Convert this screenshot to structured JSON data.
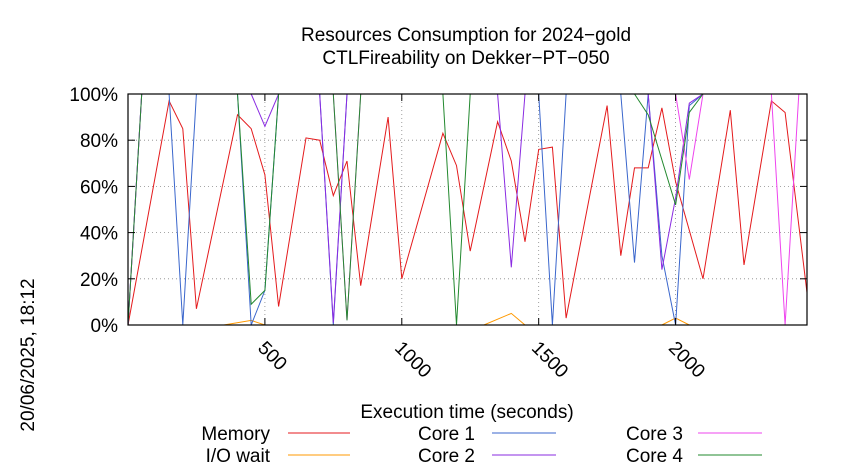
{
  "chart_data": {
    "type": "line",
    "title": "Resources Consumption for 2024−gold",
    "subtitle": "CTLFireability on Dekker−PT−050",
    "xlabel": "Execution time (seconds)",
    "ylabel": "",
    "xlim": [
      0,
      2480
    ],
    "ylim": [
      0,
      100
    ],
    "x_ticks": [
      500,
      1000,
      1500,
      2000
    ],
    "x_tick_labels": [
      "500",
      "1000",
      "1500",
      "2000"
    ],
    "y_ticks": [
      0,
      20,
      40,
      60,
      80,
      100
    ],
    "y_tick_labels": [
      "0%",
      "20%",
      "40%",
      "60%",
      "80%",
      "100%"
    ],
    "grid": true,
    "legend_position": "bottom",
    "side_label": "20/06/2025, 18:12",
    "series": [
      {
        "name": "Memory",
        "color": "#e41a1c",
        "points": [
          [
            0,
            0
          ],
          [
            150,
            97
          ],
          [
            200,
            85
          ],
          [
            250,
            7
          ],
          [
            400,
            91
          ],
          [
            450,
            85
          ],
          [
            500,
            65
          ],
          [
            550,
            8
          ],
          [
            650,
            81
          ],
          [
            700,
            80
          ],
          [
            750,
            56
          ],
          [
            800,
            71
          ],
          [
            850,
            17
          ],
          [
            950,
            90
          ],
          [
            1000,
            20
          ],
          [
            1150,
            83
          ],
          [
            1200,
            69
          ],
          [
            1250,
            32
          ],
          [
            1350,
            88
          ],
          [
            1400,
            71
          ],
          [
            1450,
            36
          ],
          [
            1500,
            76
          ],
          [
            1550,
            77
          ],
          [
            1600,
            3
          ],
          [
            1750,
            95
          ],
          [
            1800,
            30
          ],
          [
            1850,
            68
          ],
          [
            1900,
            68
          ],
          [
            1950,
            94
          ],
          [
            2000,
            62
          ],
          [
            2100,
            20
          ],
          [
            2200,
            93
          ],
          [
            2250,
            26
          ],
          [
            2350,
            97
          ],
          [
            2400,
            92
          ],
          [
            2480,
            14
          ]
        ]
      },
      {
        "name": "I/O wait",
        "color": "#ff9900",
        "points": [
          [
            0,
            0
          ],
          [
            350,
            0
          ],
          [
            450,
            2
          ],
          [
            500,
            0
          ],
          [
            1300,
            0
          ],
          [
            1400,
            5
          ],
          [
            1450,
            0
          ],
          [
            1950,
            0
          ],
          [
            2000,
            3
          ],
          [
            2050,
            0
          ],
          [
            2480,
            0
          ]
        ]
      },
      {
        "name": "Core 1",
        "color": "#3a66cc",
        "points": [
          [
            0,
            0
          ],
          [
            50,
            100
          ],
          [
            150,
            100
          ],
          [
            200,
            0
          ],
          [
            250,
            100
          ],
          [
            400,
            100
          ],
          [
            450,
            0
          ],
          [
            500,
            15
          ],
          [
            550,
            100
          ],
          [
            700,
            100
          ],
          [
            750,
            0
          ],
          [
            800,
            100
          ],
          [
            1500,
            100
          ],
          [
            1550,
            0
          ],
          [
            1600,
            100
          ],
          [
            1800,
            100
          ],
          [
            1850,
            27
          ],
          [
            1900,
            100
          ],
          [
            1950,
            30
          ],
          [
            2000,
            0
          ],
          [
            2050,
            95
          ],
          [
            2100,
            100
          ],
          [
            2480,
            100
          ]
        ]
      },
      {
        "name": "Core 2",
        "color": "#8a2be2",
        "points": [
          [
            0,
            0
          ],
          [
            50,
            100
          ],
          [
            400,
            100
          ],
          [
            450,
            100
          ],
          [
            500,
            86
          ],
          [
            550,
            100
          ],
          [
            700,
            100
          ],
          [
            750,
            1
          ],
          [
            800,
            100
          ],
          [
            1350,
            100
          ],
          [
            1400,
            25
          ],
          [
            1450,
            100
          ],
          [
            1900,
            100
          ],
          [
            1950,
            24
          ],
          [
            2000,
            55
          ],
          [
            2050,
            96
          ],
          [
            2100,
            100
          ],
          [
            2480,
            100
          ]
        ]
      },
      {
        "name": "Core 3",
        "color": "#ee44ee",
        "points": [
          [
            0,
            0
          ],
          [
            50,
            100
          ],
          [
            750,
            100
          ],
          [
            800,
            2
          ],
          [
            850,
            100
          ],
          [
            1800,
            100
          ],
          [
            1850,
            100
          ],
          [
            2000,
            100
          ],
          [
            2050,
            63
          ],
          [
            2100,
            100
          ],
          [
            2350,
            100
          ],
          [
            2400,
            0
          ],
          [
            2450,
            100
          ],
          [
            2480,
            100
          ]
        ]
      },
      {
        "name": "Core 4",
        "color": "#22882e",
        "points": [
          [
            0,
            0
          ],
          [
            50,
            100
          ],
          [
            400,
            100
          ],
          [
            450,
            9
          ],
          [
            500,
            15
          ],
          [
            550,
            100
          ],
          [
            750,
            100
          ],
          [
            800,
            2
          ],
          [
            850,
            100
          ],
          [
            1150,
            100
          ],
          [
            1200,
            0
          ],
          [
            1250,
            100
          ],
          [
            1850,
            100
          ],
          [
            1900,
            91
          ],
          [
            2000,
            52
          ],
          [
            2050,
            92
          ],
          [
            2100,
            100
          ],
          [
            2480,
            100
          ]
        ]
      }
    ]
  }
}
